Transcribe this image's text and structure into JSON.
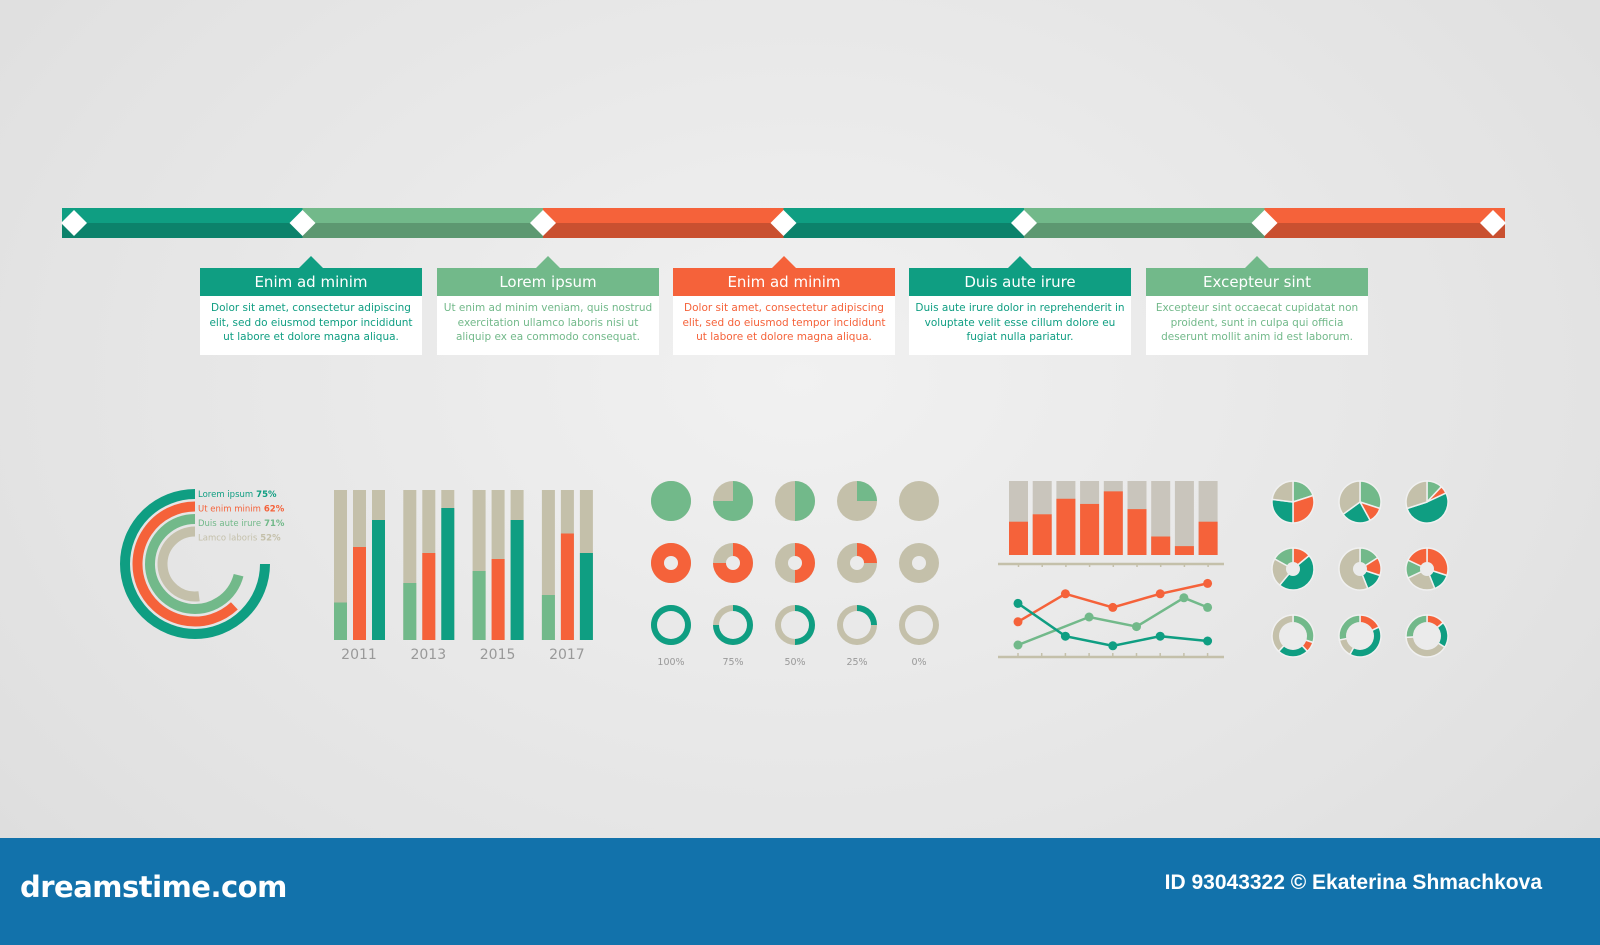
{
  "colors": {
    "teal": "#0f9e82",
    "green": "#72b98a",
    "orange": "#f5623a",
    "beige": "#c4c0aa",
    "footer": "#1272ab"
  },
  "timeline": {
    "segments": [
      "teal",
      "green",
      "orange",
      "teal",
      "green",
      "orange"
    ],
    "boxes": [
      {
        "title": "Enim ad minim",
        "text": "Dolor sit amet, consectetur adipiscing elit, sed do eiusmod tempor incididunt ut labore et dolore magna aliqua.",
        "color": "teal"
      },
      {
        "title": "Lorem ipsum",
        "text": "Ut enim ad minim veniam, quis nostrud exercitation ullamco laboris nisi ut aliquip ex ea commodo consequat.",
        "color": "green"
      },
      {
        "title": "Enim ad minim",
        "text": "Dolor sit amet, consectetur adipiscing elit, sed do eiusmod tempor incididunt ut labore et dolore magna aliqua.",
        "color": "orange"
      },
      {
        "title": "Duis aute irure",
        "text": "Duis aute irure dolor in reprehenderit in voluptate velit esse cillum dolore eu fugiat nulla pariatur.",
        "color": "teal"
      },
      {
        "title": "Excepteur sint",
        "text": "Excepteur sint occaecat cupidatat non proident, sunt in culpa qui officia deserunt mollit anim id est laborum.",
        "color": "green"
      }
    ]
  },
  "chart_data": [
    {
      "type": "radial-bar",
      "series": [
        {
          "name": "Lorem ipsum",
          "label": "75%",
          "value": 75,
          "color": "teal"
        },
        {
          "name": "Ut enim minim",
          "label": "62%",
          "value": 62,
          "color": "orange"
        },
        {
          "name": "Duis aute irure",
          "label": "71%",
          "value": 71,
          "color": "green"
        },
        {
          "name": "Lamco laboris",
          "label": "52%",
          "value": 52,
          "color": "beige"
        }
      ]
    },
    {
      "type": "bar",
      "categories": [
        "2011",
        "2013",
        "2015",
        "2017"
      ],
      "ylim": [
        0,
        100
      ],
      "series": [
        {
          "color": "green",
          "values": [
            25,
            38,
            46,
            30
          ]
        },
        {
          "color": "orange",
          "values": [
            62,
            58,
            54,
            71
          ]
        },
        {
          "color": "teal",
          "values": [
            80,
            88,
            80,
            58
          ]
        }
      ]
    },
    {
      "type": "pie-grid",
      "labels": [
        "100%",
        "75%",
        "50%",
        "25%",
        "0%"
      ],
      "values": [
        100,
        75,
        50,
        25,
        0
      ],
      "rows": [
        "green",
        "orange",
        "teal"
      ]
    },
    {
      "type": "bar",
      "values": [
        45,
        55,
        76,
        69,
        86,
        62,
        25,
        12,
        45
      ],
      "ylim": [
        0,
        100
      ],
      "color": "orange"
    },
    {
      "type": "line",
      "x": [
        0,
        1,
        2,
        3,
        4,
        5,
        6,
        7,
        8,
        9,
        10
      ],
      "ylim": [
        0,
        100
      ],
      "series": [
        {
          "color": "orange",
          "points": [
            [
              0,
              44
            ],
            [
              2,
              79
            ],
            [
              4,
              62
            ],
            [
              6,
              79
            ],
            [
              8,
              92
            ]
          ]
        },
        {
          "color": "green",
          "points": [
            [
              0,
              15
            ],
            [
              3,
              50
            ],
            [
              5,
              38
            ],
            [
              7,
              74
            ],
            [
              8,
              62
            ]
          ]
        },
        {
          "color": "teal",
          "points": [
            [
              0,
              67
            ],
            [
              2,
              26
            ],
            [
              4,
              14
            ],
            [
              6,
              26
            ],
            [
              8,
              20
            ]
          ]
        }
      ]
    },
    {
      "type": "pie",
      "style": [
        "pie",
        "donut",
        "ring"
      ],
      "slices": [
        [
          [
            20,
            "green"
          ],
          [
            30,
            "orange"
          ],
          [
            27,
            "teal"
          ],
          [
            23,
            "beige"
          ]
        ],
        [
          [
            30,
            "green"
          ],
          [
            12,
            "orange"
          ],
          [
            23,
            "teal"
          ],
          [
            35,
            "beige"
          ]
        ],
        [
          [
            12,
            "green"
          ],
          [
            6,
            "orange"
          ],
          [
            52,
            "teal"
          ],
          [
            30,
            "beige"
          ]
        ],
        [
          [
            14,
            "orange"
          ],
          [
            47,
            "teal"
          ],
          [
            22,
            "beige"
          ],
          [
            17,
            "green"
          ]
        ],
        [
          [
            16,
            "green"
          ],
          [
            14,
            "orange"
          ],
          [
            14,
            "teal"
          ],
          [
            56,
            "beige"
          ]
        ],
        [
          [
            30,
            "orange"
          ],
          [
            14,
            "teal"
          ],
          [
            24,
            "beige"
          ],
          [
            14,
            "green"
          ],
          [
            18,
            "orange"
          ]
        ],
        [
          [
            30,
            "green"
          ],
          [
            8,
            "orange"
          ],
          [
            24,
            "teal"
          ],
          [
            38,
            "beige"
          ]
        ],
        [
          [
            18,
            "orange"
          ],
          [
            40,
            "teal"
          ],
          [
            14,
            "beige"
          ],
          [
            28,
            "green"
          ]
        ],
        [
          [
            14,
            "orange"
          ],
          [
            20,
            "teal"
          ],
          [
            40,
            "beige"
          ],
          [
            26,
            "green"
          ]
        ]
      ]
    }
  ],
  "footer": {
    "brand": "dreamstime.com",
    "credit": "ID 93043322 © Ekaterina Shmachkova"
  }
}
